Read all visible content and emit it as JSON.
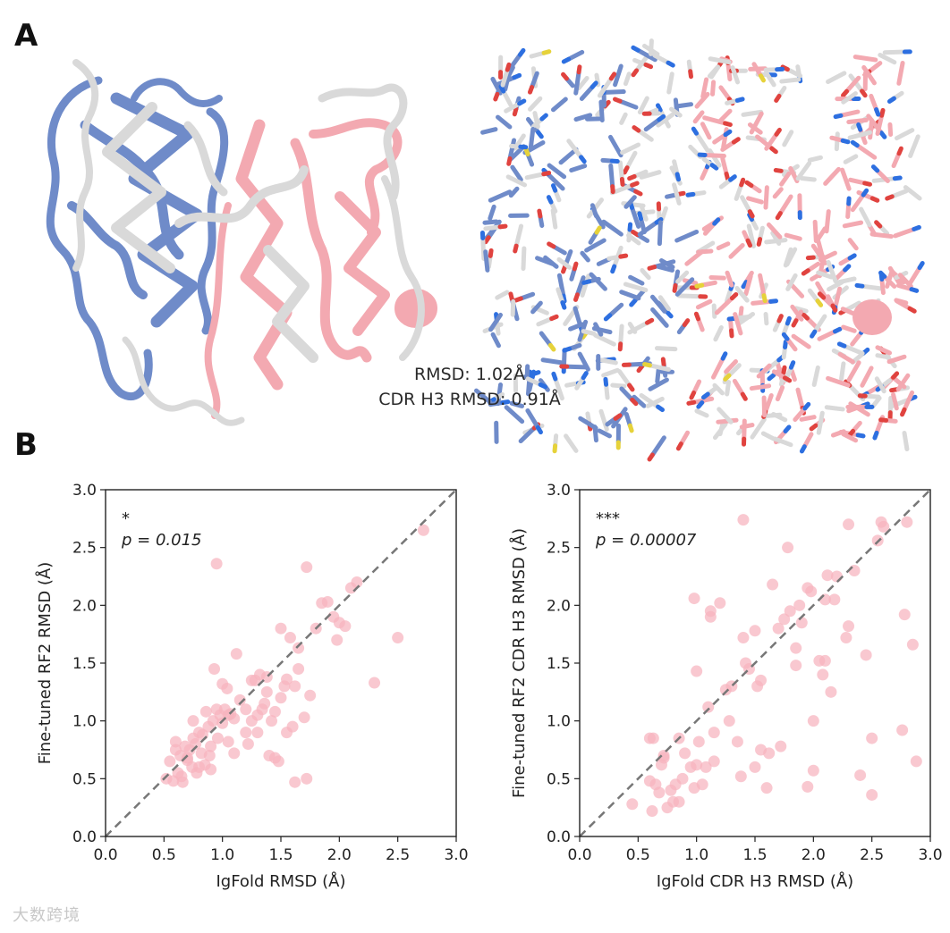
{
  "panels": {
    "a": "A",
    "b": "B"
  },
  "rmsd_annotation": {
    "line1": "RMSD: 1.02Å",
    "line2": "CDR H3 RMSD: 0.91Å"
  },
  "colors": {
    "heavy": "#6f8bc9",
    "light": "#f3a9b1",
    "reference": "#d9d9d9",
    "nitrogen": "#2d6fe0",
    "oxygen": "#e0433f",
    "sulfur": "#e6d23a",
    "points": "#f7b3be",
    "diag": "#777777"
  },
  "watermark": "大数跨境",
  "chart_data": [
    {
      "type": "scatter",
      "significance": "*",
      "pvalue": "p = 0.015",
      "xlabel": "IgFold RMSD (Å)",
      "ylabel": "Fine-tuned RF2 RMSD (Å)",
      "xlim": [
        0,
        3
      ],
      "ylim": [
        0,
        3
      ],
      "ticks": [
        "0.0",
        "0.5",
        "1.0",
        "1.5",
        "2.0",
        "2.5",
        "3.0"
      ],
      "diagonal": true,
      "x": [
        0.52,
        0.55,
        0.58,
        0.6,
        0.62,
        0.64,
        0.66,
        0.68,
        0.7,
        0.72,
        0.74,
        0.75,
        0.77,
        0.78,
        0.8,
        0.82,
        0.83,
        0.85,
        0.86,
        0.88,
        0.89,
        0.9,
        0.92,
        0.93,
        0.95,
        0.96,
        0.98,
        1.0,
        1.02,
        1.04,
        1.05,
        1.07,
        1.1,
        1.12,
        1.15,
        1.2,
        1.22,
        1.25,
        1.28,
        1.3,
        1.32,
        1.34,
        1.36,
        1.38,
        1.4,
        1.42,
        1.45,
        1.48,
        1.5,
        1.53,
        1.55,
        1.58,
        1.6,
        1.62,
        1.65,
        1.7,
        1.72,
        1.75,
        1.8,
        1.85,
        1.9,
        1.95,
        1.98,
        2.0,
        2.05,
        2.1,
        2.15,
        2.3,
        2.5,
        2.72,
        0.95,
        1.72,
        1.62,
        1.45,
        1.38,
        1.1,
        1.0,
        0.9,
        0.8,
        0.7,
        0.65,
        1.3,
        1.25,
        1.5,
        1.55,
        1.65,
        1.2,
        0.6,
        0.75,
        1.05
      ],
      "y": [
        0.5,
        0.65,
        0.48,
        0.82,
        0.55,
        0.7,
        0.47,
        0.78,
        0.66,
        0.75,
        0.6,
        0.85,
        0.8,
        0.55,
        0.9,
        0.72,
        0.88,
        0.62,
        1.08,
        0.95,
        0.7,
        0.58,
        1.0,
        1.45,
        1.1,
        0.85,
        1.05,
        1.32,
        1.1,
        1.28,
        0.82,
        1.06,
        1.02,
        1.58,
        1.18,
        1.1,
        0.8,
        1.35,
        1.35,
        1.05,
        1.4,
        1.1,
        1.15,
        1.38,
        0.7,
        1.0,
        1.08,
        0.65,
        1.8,
        1.3,
        1.36,
        1.72,
        0.95,
        1.3,
        1.63,
        1.03,
        0.5,
        1.22,
        1.8,
        2.02,
        2.03,
        1.9,
        1.7,
        1.85,
        1.82,
        2.15,
        2.2,
        1.33,
        1.72,
        2.65,
        2.36,
        2.33,
        0.47,
        0.68,
        1.25,
        0.72,
        0.98,
        0.78,
        0.6,
        0.68,
        0.52,
        0.9,
        1.0,
        1.2,
        0.9,
        1.45,
        0.9,
        0.75,
        1.0,
        1.05
      ]
    },
    {
      "type": "scatter",
      "significance": "***",
      "pvalue": "p = 0.00007",
      "xlabel": "IgFold CDR H3 RMSD (Å)",
      "ylabel": "Fine-tuned RF2 CDR H3 RMSD (Å)",
      "xlim": [
        0,
        3
      ],
      "ylim": [
        0,
        3
      ],
      "ticks": [
        "0.0",
        "0.5",
        "1.0",
        "1.5",
        "2.0",
        "2.5",
        "3.0"
      ],
      "diagonal": true,
      "x": [
        0.45,
        0.6,
        0.62,
        0.65,
        0.68,
        0.7,
        0.72,
        0.75,
        0.78,
        0.8,
        0.82,
        0.85,
        0.88,
        0.9,
        0.95,
        0.98,
        1.0,
        1.02,
        1.05,
        1.08,
        1.1,
        1.12,
        1.15,
        1.2,
        1.25,
        1.3,
        1.35,
        1.38,
        1.4,
        1.42,
        1.45,
        1.5,
        1.52,
        1.55,
        1.6,
        1.65,
        1.7,
        1.72,
        1.75,
        1.78,
        1.8,
        1.85,
        1.88,
        1.9,
        1.95,
        1.98,
        2.0,
        2.05,
        2.08,
        2.1,
        2.12,
        2.15,
        2.18,
        2.2,
        2.28,
        2.3,
        2.35,
        2.4,
        2.45,
        2.5,
        2.55,
        2.58,
        2.78,
        2.8,
        2.85,
        2.88,
        1.4,
        1.0,
        1.12,
        1.28,
        1.95,
        0.6,
        0.72,
        2.1,
        2.5,
        1.5,
        1.62,
        2.0,
        0.85,
        1.15,
        0.63,
        0.98,
        1.55,
        2.3,
        2.6,
        2.76,
        1.85
      ],
      "y": [
        0.28,
        0.85,
        0.22,
        0.45,
        0.38,
        0.62,
        0.7,
        0.25,
        0.4,
        0.3,
        0.45,
        0.3,
        0.5,
        0.72,
        0.6,
        0.42,
        0.62,
        0.82,
        0.45,
        0.6,
        1.12,
        1.95,
        0.9,
        2.02,
        1.27,
        1.3,
        0.82,
        0.52,
        1.72,
        1.5,
        1.45,
        0.6,
        1.3,
        0.75,
        0.42,
        2.18,
        1.8,
        0.78,
        1.88,
        2.5,
        1.95,
        1.63,
        2.0,
        1.85,
        2.15,
        2.12,
        0.57,
        1.52,
        1.4,
        1.52,
        2.26,
        1.25,
        2.05,
        2.25,
        1.72,
        1.82,
        2.3,
        0.53,
        1.57,
        0.36,
        2.56,
        2.72,
        1.92,
        2.72,
        1.66,
        0.65,
        2.74,
        1.43,
        1.9,
        1.0,
        0.43,
        0.48,
        0.68,
        2.05,
        0.85,
        1.78,
        0.72,
        1.0,
        0.85,
        0.65,
        0.85,
        2.06,
        1.35,
        2.7,
        2.68,
        0.92,
        1.48
      ]
    }
  ]
}
